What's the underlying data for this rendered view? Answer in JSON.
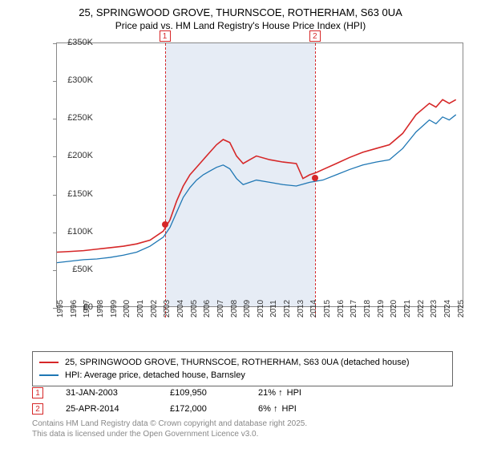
{
  "title": "25, SPRINGWOOD GROVE, THURNSCOE, ROTHERHAM, S63 0UA",
  "subtitle": "Price paid vs. HM Land Registry's House Price Index (HPI)",
  "chart": {
    "type": "line",
    "xlim": [
      1995,
      2025.5
    ],
    "ylim": [
      0,
      350000
    ],
    "ytick_step": 50000,
    "yticks": [
      "£0",
      "£50K",
      "£100K",
      "£150K",
      "£200K",
      "£250K",
      "£300K",
      "£350K"
    ],
    "xticks": [
      1995,
      1996,
      1997,
      1998,
      1999,
      2000,
      2001,
      2002,
      2003,
      2004,
      2005,
      2006,
      2007,
      2008,
      2009,
      2010,
      2011,
      2012,
      2013,
      2014,
      2015,
      2016,
      2017,
      2018,
      2019,
      2020,
      2021,
      2022,
      2023,
      2024,
      2025
    ],
    "band": {
      "start": 2003.08,
      "end": 2014.32,
      "color": "#e6ecf5"
    },
    "series_red": {
      "color": "#d62728",
      "width": 1.6,
      "points": [
        [
          1995,
          72000
        ],
        [
          1996,
          73000
        ],
        [
          1997,
          74000
        ],
        [
          1998,
          76000
        ],
        [
          1999,
          78000
        ],
        [
          2000,
          80000
        ],
        [
          2001,
          83000
        ],
        [
          2002,
          88000
        ],
        [
          2003,
          100000
        ],
        [
          2003.5,
          115000
        ],
        [
          2004,
          140000
        ],
        [
          2004.5,
          160000
        ],
        [
          2005,
          175000
        ],
        [
          2005.5,
          185000
        ],
        [
          2006,
          195000
        ],
        [
          2006.5,
          205000
        ],
        [
          2007,
          215000
        ],
        [
          2007.5,
          222000
        ],
        [
          2008,
          218000
        ],
        [
          2008.5,
          200000
        ],
        [
          2009,
          190000
        ],
        [
          2009.5,
          195000
        ],
        [
          2010,
          200000
        ],
        [
          2011,
          195000
        ],
        [
          2012,
          192000
        ],
        [
          2013,
          190000
        ],
        [
          2013.5,
          170000
        ],
        [
          2014,
          175000
        ],
        [
          2014.5,
          178000
        ],
        [
          2015,
          182000
        ],
        [
          2016,
          190000
        ],
        [
          2017,
          198000
        ],
        [
          2018,
          205000
        ],
        [
          2019,
          210000
        ],
        [
          2020,
          215000
        ],
        [
          2021,
          230000
        ],
        [
          2022,
          255000
        ],
        [
          2023,
          270000
        ],
        [
          2023.5,
          265000
        ],
        [
          2024,
          275000
        ],
        [
          2024.5,
          270000
        ],
        [
          2025,
          275000
        ]
      ]
    },
    "series_blue": {
      "color": "#1f77b4",
      "width": 1.3,
      "points": [
        [
          1995,
          58000
        ],
        [
          1996,
          60000
        ],
        [
          1997,
          62000
        ],
        [
          1998,
          63000
        ],
        [
          1999,
          65000
        ],
        [
          2000,
          68000
        ],
        [
          2001,
          72000
        ],
        [
          2002,
          80000
        ],
        [
          2003,
          92000
        ],
        [
          2003.5,
          105000
        ],
        [
          2004,
          125000
        ],
        [
          2004.5,
          145000
        ],
        [
          2005,
          158000
        ],
        [
          2005.5,
          168000
        ],
        [
          2006,
          175000
        ],
        [
          2006.5,
          180000
        ],
        [
          2007,
          185000
        ],
        [
          2007.5,
          188000
        ],
        [
          2008,
          183000
        ],
        [
          2008.5,
          170000
        ],
        [
          2009,
          162000
        ],
        [
          2009.5,
          165000
        ],
        [
          2010,
          168000
        ],
        [
          2011,
          165000
        ],
        [
          2012,
          162000
        ],
        [
          2013,
          160000
        ],
        [
          2014,
          165000
        ],
        [
          2015,
          168000
        ],
        [
          2016,
          175000
        ],
        [
          2017,
          182000
        ],
        [
          2018,
          188000
        ],
        [
          2019,
          192000
        ],
        [
          2020,
          195000
        ],
        [
          2021,
          210000
        ],
        [
          2022,
          232000
        ],
        [
          2023,
          248000
        ],
        [
          2023.5,
          243000
        ],
        [
          2024,
          252000
        ],
        [
          2024.5,
          248000
        ],
        [
          2025,
          255000
        ]
      ]
    },
    "markers": [
      {
        "num": "1",
        "x": 2003.08,
        "y": 109950
      },
      {
        "num": "2",
        "x": 2014.32,
        "y": 172000
      }
    ],
    "plot_border": "#888888",
    "background": "#ffffff"
  },
  "legend": {
    "red": "25, SPRINGWOOD GROVE, THURNSCOE, ROTHERHAM, S63 0UA (detached house)",
    "blue": "HPI: Average price, detached house, Barnsley"
  },
  "sales": [
    {
      "num": "1",
      "date": "31-JAN-2003",
      "price": "£109,950",
      "pct": "21%",
      "arrow": "↑",
      "suffix": "HPI"
    },
    {
      "num": "2",
      "date": "25-APR-2014",
      "price": "£172,000",
      "pct": "6%",
      "arrow": "↑",
      "suffix": "HPI"
    }
  ],
  "footer": {
    "line1": "Contains HM Land Registry data © Crown copyright and database right 2025.",
    "line2": "This data is licensed under the Open Government Licence v3.0."
  }
}
